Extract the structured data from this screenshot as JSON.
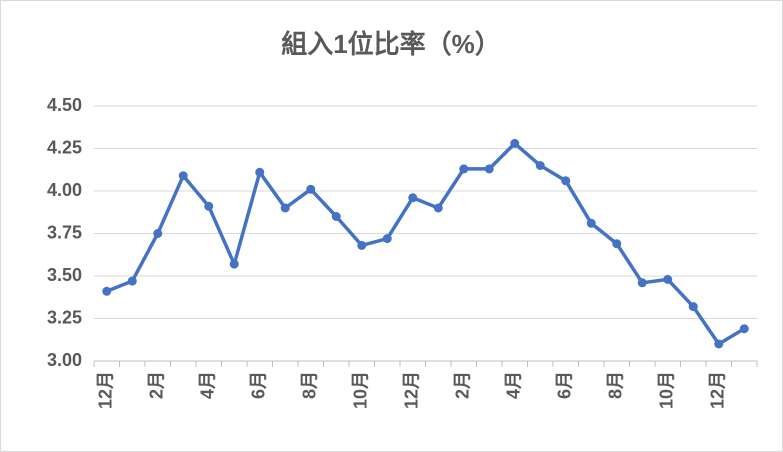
{
  "chart_data": {
    "type": "line",
    "title": "組入1位比率（%）",
    "categories": [
      "12月",
      null,
      "2月",
      null,
      "4月",
      null,
      "6月",
      null,
      "8月",
      null,
      "10月",
      null,
      "12月",
      null,
      "2月",
      null,
      "4月",
      null,
      "6月",
      null,
      "8月",
      null,
      "10月",
      null,
      "12月",
      null
    ],
    "values": [
      3.41,
      3.47,
      3.75,
      4.09,
      3.91,
      3.57,
      4.11,
      3.9,
      4.01,
      3.85,
      3.68,
      3.72,
      3.96,
      3.9,
      4.13,
      4.13,
      4.28,
      4.15,
      4.06,
      3.81,
      3.69,
      3.46,
      3.48,
      3.32,
      3.1,
      3.19
    ],
    "color": "#4472c4",
    "ylim": [
      3.0,
      4.5
    ],
    "yticks": [
      {
        "value": 3.0,
        "label": "3.00"
      },
      {
        "value": 3.25,
        "label": "3.25"
      },
      {
        "value": 3.5,
        "label": "3.50"
      },
      {
        "value": 3.75,
        "label": "3.75"
      },
      {
        "value": 4.0,
        "label": "4.00"
      },
      {
        "value": 4.25,
        "label": "4.25"
      },
      {
        "value": 4.5,
        "label": "4.50"
      }
    ],
    "grid": true
  }
}
